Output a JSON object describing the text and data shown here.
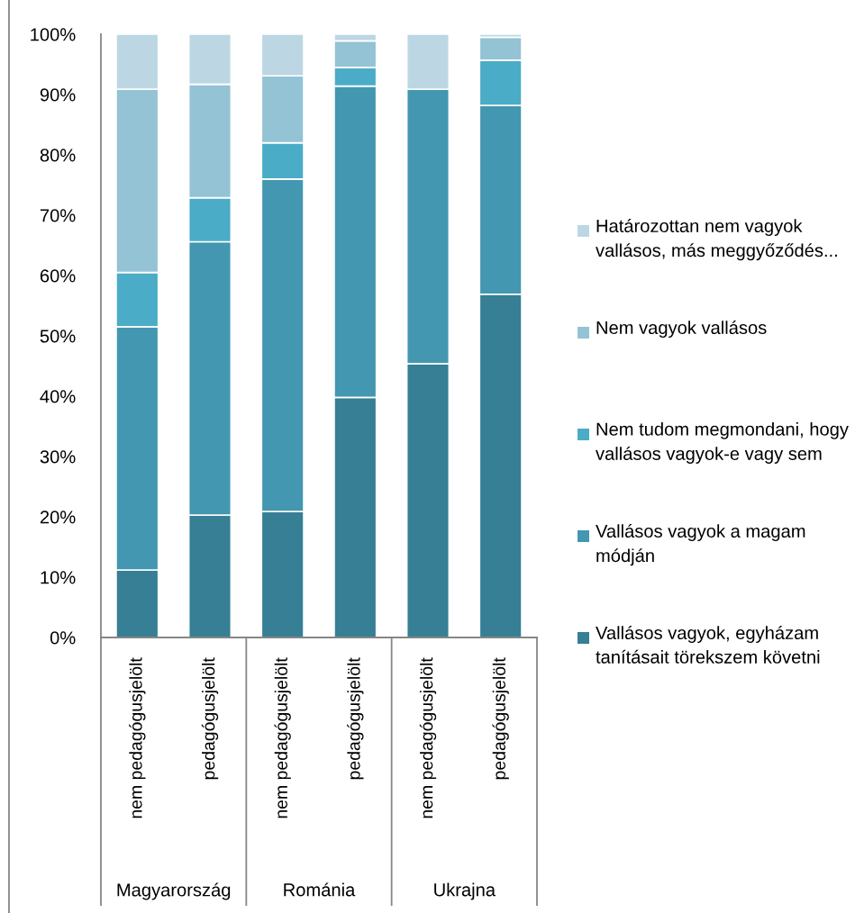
{
  "chart_data": {
    "type": "bar",
    "stacked": true,
    "categories": [
      "nem pedagógusjelölt",
      "pedagógusjelölt",
      "nem pedagógusjelölt",
      "pedagógusjelölt",
      "nem pedagógusjelölt",
      "pedagógusjelölt"
    ],
    "annotations": [
      "Magyarország",
      "Románia",
      "Ukrajna"
    ],
    "series": [
      {
        "name": "Vallásos vagyok, egyházam tanításait törekszem követni",
        "color": "#367f95",
        "values": [
          11.2,
          20.3,
          20.9,
          39.8,
          45.4,
          56.9
        ]
      },
      {
        "name": "Vallásos vagyok a magam módján",
        "color": "#4397b0",
        "values": [
          40.3,
          45.3,
          55.1,
          51.6,
          45.5,
          31.3
        ]
      },
      {
        "name": "Nem tudom megmondani, hogy vallásos vagyok-e vagy sem",
        "color": "#4aacc6",
        "values": [
          9.0,
          7.3,
          6.0,
          3.1,
          0,
          7.5
        ]
      },
      {
        "name": "Nem vagyok vallásos",
        "color": "#93c3d4",
        "values": [
          30.4,
          18.8,
          11.1,
          4.4,
          0,
          3.8
        ]
      },
      {
        "name": "Határozottan nem vagyok vallásos, más meggyőződés...",
        "color": "#bcd7e3",
        "values": [
          9.1,
          8.3,
          6.9,
          1.1,
          9.1,
          0.5
        ]
      }
    ],
    "ylim": [
      0,
      100
    ],
    "yticks": [
      {
        "value": 0,
        "label": "0%"
      },
      {
        "value": 10,
        "label": "10%"
      },
      {
        "value": 20,
        "label": "20%"
      },
      {
        "value": 30,
        "label": "30%"
      },
      {
        "value": 40,
        "label": "40%"
      },
      {
        "value": 50,
        "label": "50%"
      },
      {
        "value": 60,
        "label": "60%"
      },
      {
        "value": 70,
        "label": "70%"
      },
      {
        "value": 80,
        "label": "80%"
      },
      {
        "value": 90,
        "label": "90%"
      },
      {
        "value": 100,
        "label": "100%"
      }
    ],
    "grid": false,
    "legend": "right"
  }
}
